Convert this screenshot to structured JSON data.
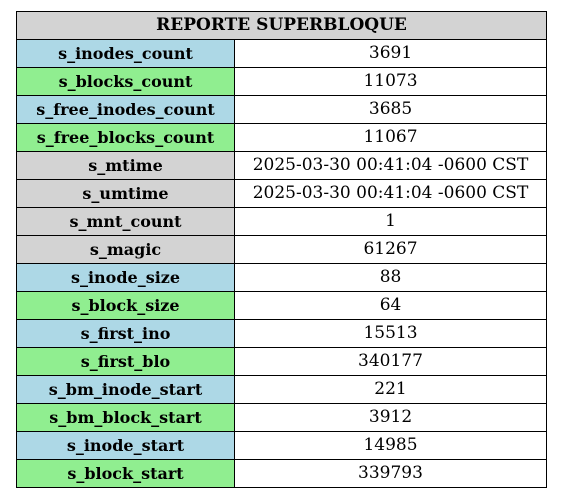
{
  "title": "REPORTE SUPERBLOQUE",
  "colors": {
    "header": "#d3d3d3",
    "blue": "#add8e6",
    "green": "#90ee90",
    "gray": "#d3d3d3",
    "value_bg": "#ffffff",
    "border": "#000000"
  },
  "rows": [
    {
      "key": "s_inodes_count",
      "value": "3691",
      "color": "blue"
    },
    {
      "key": "s_blocks_count",
      "value": "11073",
      "color": "green"
    },
    {
      "key": "s_free_inodes_count",
      "value": "3685",
      "color": "blue"
    },
    {
      "key": "s_free_blocks_count",
      "value": "11067",
      "color": "green"
    },
    {
      "key": "s_mtime",
      "value": "2025-03-30 00:41:04 -0600 CST",
      "color": "gray"
    },
    {
      "key": "s_umtime",
      "value": "2025-03-30 00:41:04 -0600 CST",
      "color": "gray"
    },
    {
      "key": "s_mnt_count",
      "value": "1",
      "color": "gray"
    },
    {
      "key": "s_magic",
      "value": "61267",
      "color": "gray"
    },
    {
      "key": "s_inode_size",
      "value": "88",
      "color": "blue"
    },
    {
      "key": "s_block_size",
      "value": "64",
      "color": "green"
    },
    {
      "key": "s_first_ino",
      "value": "15513",
      "color": "blue"
    },
    {
      "key": "s_first_blo",
      "value": "340177",
      "color": "green"
    },
    {
      "key": "s_bm_inode_start",
      "value": "221",
      "color": "blue"
    },
    {
      "key": "s_bm_block_start",
      "value": "3912",
      "color": "green"
    },
    {
      "key": "s_inode_start",
      "value": "14985",
      "color": "blue"
    },
    {
      "key": "s_block_start",
      "value": "339793",
      "color": "green"
    }
  ]
}
